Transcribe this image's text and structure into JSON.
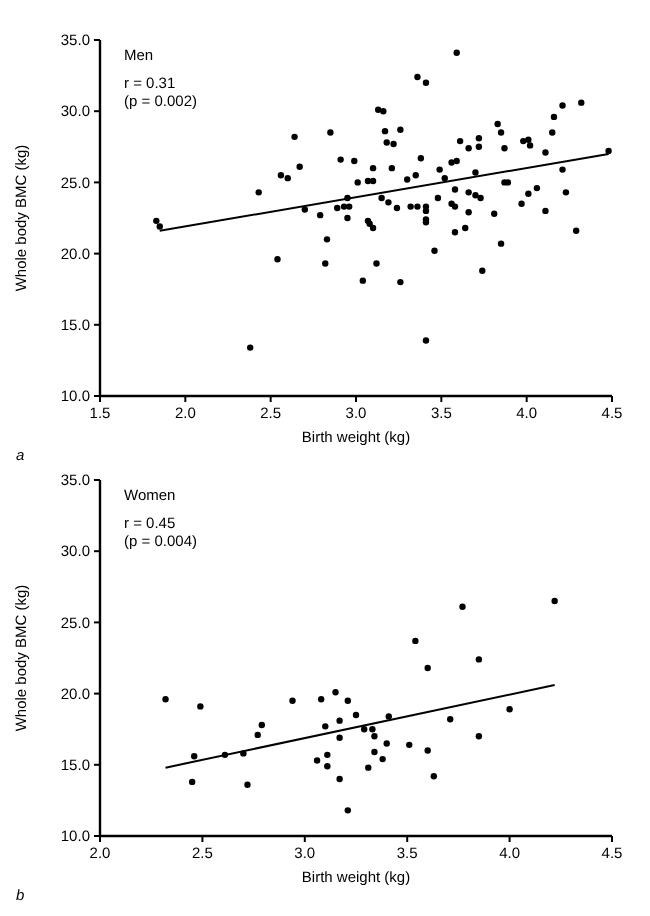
{
  "chart_data": [
    {
      "type": "scatter",
      "title": "Men",
      "annotations": [
        "r = 0.31",
        "(p = 0.002)",
        "a"
      ],
      "xlabel": "Birth weight (kg)",
      "ylabel": "Whole body BMC (kg)",
      "xlim": [
        1.5,
        4.5
      ],
      "xticks": [
        1.5,
        {
          "value": 2,
          "label": "2.0"
        },
        2.5,
        {
          "value": 3,
          "label": "3.0"
        },
        3.5,
        {
          "value": 4,
          "label": "4.0"
        },
        4.5
      ],
      "ylim": [
        10,
        35
      ],
      "yticks": [
        {
          "value": 10,
          "label": "10.0"
        },
        {
          "value": 15,
          "label": "15.0"
        },
        {
          "value": 20,
          "label": "20.0"
        },
        {
          "value": 25,
          "label": "25.0"
        },
        {
          "value": 30,
          "label": "30.0"
        },
        {
          "value": 35,
          "label": "35.0"
        }
      ],
      "series": [
        {
          "marker": "circle",
          "color": "#000000",
          "x": [
            3.59,
            3.36,
            3.41,
            3.13,
            3.16,
            4.32,
            4.21,
            4.16,
            3.83,
            3.85,
            2.64,
            2.85,
            3.17,
            3.26,
            4.15,
            4.48,
            3.18,
            3.22,
            3.61,
            3.72,
            3.66,
            3.72,
            3.87,
            3.98,
            4.01,
            4.02,
            4.11,
            3.38,
            3.56,
            3.59,
            2.91,
            2.99,
            2.67,
            2.56,
            2.6,
            3.1,
            3.21,
            3.49,
            4.21,
            3.87,
            3.89,
            3.07,
            3.1,
            3.01,
            3.3,
            3.35,
            3.52,
            3.7,
            2.43,
            4.06,
            4.01,
            4.23,
            3.58,
            3.66,
            3.7,
            3.73,
            3.15,
            2.95,
            3.48,
            1.83,
            1.85,
            2.7,
            2.79,
            2.89,
            2.93,
            2.96,
            2.95,
            3.07,
            3.08,
            3.1,
            2.83,
            2.54,
            2.82,
            3.12,
            3.04,
            3.26,
            2.38,
            3.41,
            3.46,
            3.19,
            3.24,
            3.32,
            3.36,
            3.41,
            3.41,
            3.41,
            3.41,
            3.56,
            3.58,
            3.66,
            3.58,
            3.64,
            3.81,
            3.97,
            4.11,
            3.85,
            3.74,
            4.29
          ],
          "values": [
            34.1,
            32.4,
            32.0,
            30.1,
            30.0,
            30.6,
            30.4,
            29.6,
            29.1,
            28.5,
            28.2,
            28.5,
            28.6,
            28.7,
            28.5,
            27.2,
            27.8,
            27.7,
            27.9,
            28.1,
            27.4,
            27.5,
            27.4,
            27.9,
            28.0,
            27.6,
            27.1,
            26.7,
            26.4,
            26.5,
            26.6,
            26.5,
            26.1,
            25.5,
            25.3,
            26.0,
            26.0,
            25.9,
            25.9,
            25.0,
            25.0,
            25.1,
            25.1,
            25.0,
            25.2,
            25.5,
            25.3,
            25.7,
            24.3,
            24.6,
            24.2,
            24.3,
            24.5,
            24.3,
            24.1,
            23.9,
            23.9,
            23.9,
            23.9,
            22.3,
            21.9,
            23.1,
            22.7,
            23.2,
            23.3,
            23.3,
            22.5,
            22.3,
            22.1,
            21.8,
            21.0,
            19.6,
            19.3,
            19.3,
            18.1,
            18.0,
            13.4,
            13.9,
            20.2,
            23.6,
            23.2,
            23.3,
            23.3,
            23.3,
            23.0,
            22.4,
            22.2,
            23.5,
            23.3,
            22.9,
            21.5,
            21.8,
            22.8,
            23.5,
            23.0,
            20.7,
            18.8,
            21.6
          ]
        },
        {
          "type": "line",
          "color": "#000000",
          "x": [
            1.85,
            4.48
          ],
          "values": [
            21.6,
            27.0
          ]
        }
      ]
    },
    {
      "type": "scatter",
      "title": "Women",
      "annotations": [
        "r = 0.45",
        "(p = 0.004)",
        "b"
      ],
      "xlabel": "Birth weight (kg)",
      "ylabel": "Whole body BMC (kg)",
      "xlim": [
        2,
        4.5
      ],
      "xticks": [
        {
          "value": 2,
          "label": "2.0"
        },
        2.5,
        {
          "value": 3,
          "label": "3.0"
        },
        3.5,
        {
          "value": 4,
          "label": "4.0"
        },
        4.5
      ],
      "ylim": [
        10,
        35
      ],
      "yticks": [
        {
          "value": 10,
          "label": "10.0"
        },
        {
          "value": 15,
          "label": "15.0"
        },
        {
          "value": 20,
          "label": "20.0"
        },
        {
          "value": 25,
          "label": "25.0"
        },
        {
          "value": 30,
          "label": "30.0"
        },
        {
          "value": 35,
          "label": "35.0"
        }
      ],
      "series": [
        {
          "marker": "circle",
          "color": "#000000",
          "x": [
            3.77,
            4.22,
            3.54,
            3.6,
            3.85,
            2.32,
            2.49,
            2.46,
            2.45,
            2.61,
            2.7,
            2.72,
            2.77,
            2.79,
            2.94,
            3.06,
            3.08,
            3.1,
            3.11,
            3.11,
            3.15,
            3.17,
            3.17,
            3.17,
            3.21,
            3.21,
            3.25,
            3.29,
            3.33,
            3.31,
            3.34,
            3.34,
            3.38,
            3.4,
            3.41,
            3.51,
            3.6,
            3.63,
            3.71,
            3.85,
            4.0
          ],
          "values": [
            26.1,
            26.5,
            23.7,
            21.8,
            22.4,
            19.6,
            19.1,
            15.6,
            13.8,
            15.7,
            15.8,
            13.6,
            17.1,
            17.8,
            19.5,
            15.3,
            19.6,
            17.7,
            15.7,
            14.9,
            20.1,
            18.1,
            16.9,
            14.0,
            11.8,
            19.5,
            18.5,
            17.5,
            17.5,
            14.8,
            17.0,
            15.9,
            15.4,
            16.5,
            18.4,
            16.4,
            16.0,
            14.2,
            18.2,
            17.0,
            18.9
          ]
        },
        {
          "type": "line",
          "color": "#000000",
          "x": [
            2.32,
            4.22
          ],
          "values": [
            14.8,
            20.6
          ]
        }
      ]
    }
  ]
}
